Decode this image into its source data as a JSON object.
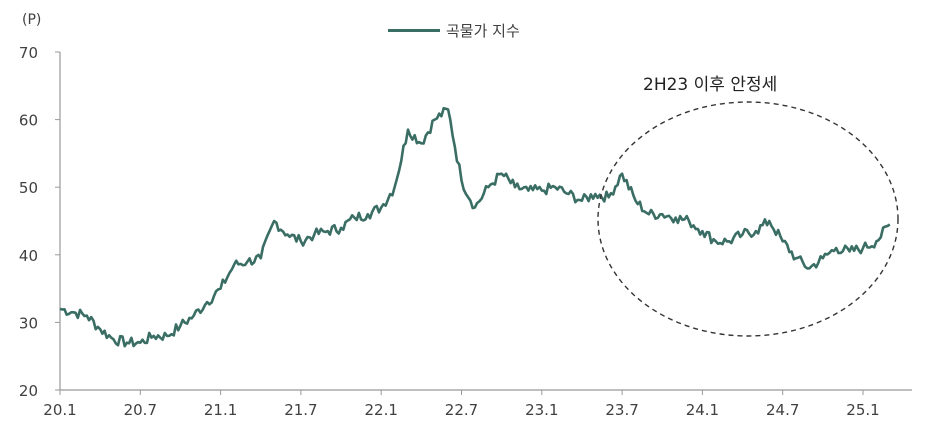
{
  "chart_data": {
    "type": "line",
    "title": "",
    "ylabel": "(P)",
    "xlabel": "",
    "ylim": [
      20,
      70
    ],
    "yticks": [
      20,
      30,
      40,
      50,
      60,
      70
    ],
    "xticks": [
      "20.1",
      "20.7",
      "21.1",
      "21.7",
      "22.1",
      "22.7",
      "23.1",
      "23.7",
      "24.1",
      "24.7",
      "25.1"
    ],
    "legend": [
      "곡물가 지수"
    ],
    "legend_position": "top-center",
    "grid": false,
    "series": [
      {
        "name": "곡물가 지수",
        "color": "#3a6e64",
        "x": [
          "20.1",
          "20.2",
          "20.3",
          "20.4",
          "20.5",
          "20.6",
          "20.7",
          "20.8",
          "20.9",
          "20.10",
          "20.11",
          "20.12",
          "21.1",
          "21.2",
          "21.3",
          "21.4",
          "21.5",
          "21.6",
          "21.7",
          "21.8",
          "21.9",
          "21.10",
          "21.11",
          "21.12",
          "22.1",
          "22.2",
          "22.3",
          "22.4",
          "22.5",
          "22.6",
          "22.7",
          "22.8",
          "22.9",
          "22.10",
          "22.11",
          "22.12",
          "23.1",
          "23.2",
          "23.3",
          "23.4",
          "23.5",
          "23.6",
          "23.7",
          "23.8",
          "23.9",
          "23.10",
          "23.11",
          "23.12",
          "24.1",
          "24.2",
          "24.3",
          "24.4",
          "24.5",
          "24.6",
          "24.7",
          "24.8",
          "24.9",
          "24.10",
          "24.11",
          "24.12",
          "25.1",
          "25.2",
          "25.3"
        ],
        "values": [
          32,
          31.5,
          31,
          29,
          27.5,
          27,
          27,
          28,
          28,
          29.5,
          31,
          33,
          35,
          38.5,
          39,
          39.5,
          45,
          43,
          42,
          43,
          43.5,
          44,
          45.5,
          46,
          47,
          50,
          58.5,
          56.5,
          60,
          61.5,
          51,
          47,
          50,
          52,
          50,
          49.5,
          49.5,
          50,
          49,
          48,
          49,
          48.5,
          52,
          48,
          46,
          46,
          45.5,
          45,
          43.5,
          42,
          42,
          43,
          43.5,
          45,
          42,
          39.5,
          38,
          39.5,
          41,
          40.5,
          41,
          42,
          44.5
        ]
      }
    ],
    "annotations": [
      {
        "text": "2H23 이후 안정세",
        "shape": "dashed-ellipse",
        "covers": "23.7 ~ 25.3"
      }
    ]
  },
  "legend": {
    "label": "곡물가 지수"
  },
  "annotation": {
    "text": "2H23 이후 안정세"
  },
  "axis": {
    "unit": "(P)"
  }
}
